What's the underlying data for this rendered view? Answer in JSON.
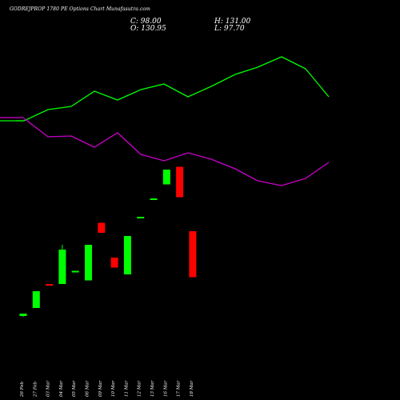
{
  "header": {
    "title": "GODREJPROP 1780 PE Options Chart Munafasutra.com",
    "close": "C: 98.00",
    "open": "O: 130.95",
    "high": "H: 131.00",
    "low": "L: 97.70"
  },
  "chart_data": {
    "type": "candlestick",
    "categories": [
      "26 Feb",
      "27 Feb",
      "03 Mar",
      "04 Mar",
      "05 Mar",
      "06 Mar",
      "09 Mar",
      "10 Mar",
      "11 Mar",
      "12 Mar",
      "13 Mar",
      "16 Mar",
      "17 Mar",
      "18 Mar"
    ],
    "candles": [
      {
        "date": "26 Feb",
        "open": 1.0,
        "high": 1.6,
        "low": 0.8,
        "close": 1.6,
        "color": "green"
      },
      {
        "date": "27 Feb",
        "open": 3.0,
        "high": 7.2,
        "low": 3.0,
        "close": 7.2,
        "color": "green"
      },
      {
        "date": "03 Mar",
        "open": 9.0,
        "high": 9.0,
        "low": 9.0,
        "close": 9.0,
        "color": "red"
      },
      {
        "date": "04 Mar",
        "open": 9.0,
        "high": 18.8,
        "low": 9.0,
        "close": 17.6,
        "color": "green"
      },
      {
        "date": "05 Mar",
        "open": 12.3,
        "high": 12.3,
        "low": 12.3,
        "close": 12.3,
        "color": "green"
      },
      {
        "date": "06 Mar",
        "open": 9.9,
        "high": 18.8,
        "low": 9.9,
        "close": 18.8,
        "color": "green"
      },
      {
        "date": "09 Mar",
        "open": 24.3,
        "high": 24.3,
        "low": 21.8,
        "close": 21.8,
        "color": "red"
      },
      {
        "date": "10 Mar",
        "open": 15.6,
        "high": 15.6,
        "low": 13.1,
        "close": 13.1,
        "color": "red"
      },
      {
        "date": "11 Mar",
        "open": 11.4,
        "high": 21.0,
        "low": 11.4,
        "close": 21.0,
        "color": "green"
      },
      {
        "date": "12 Mar",
        "open": 25.8,
        "high": 25.8,
        "low": 25.8,
        "close": 25.8,
        "color": "green"
      },
      {
        "date": "13 Mar",
        "open": 30.4,
        "high": 30.4,
        "low": 30.4,
        "close": 30.4,
        "color": "green"
      },
      {
        "date": "16 Mar",
        "open": 33.9,
        "high": 37.6,
        "low": 33.9,
        "close": 37.6,
        "color": "green"
      },
      {
        "date": "17 Mar",
        "open": 38.3,
        "high": 38.3,
        "low": 30.7,
        "close": 30.7,
        "color": "red"
      },
      {
        "date": "18 Mar",
        "open": 22.2,
        "high": 22.2,
        "low": 10.7,
        "close": 10.7,
        "color": "red"
      }
    ],
    "line_series": [
      {
        "color": "#00ff00",
        "points": [
          [
            20,
            151
          ],
          [
            30,
            151
          ],
          [
            60,
            137
          ],
          [
            89,
            133
          ],
          [
            118,
            114
          ],
          [
            147,
            125
          ],
          [
            176,
            112
          ],
          [
            205,
            105
          ],
          [
            235,
            121
          ],
          [
            264,
            108
          ],
          [
            294,
            93
          ],
          [
            322,
            84
          ],
          [
            352,
            71
          ],
          [
            382,
            86
          ],
          [
            411,
            121
          ]
        ],
        "leading": [
          [
            0,
            151
          ],
          [
            30,
            151
          ]
        ]
      },
      {
        "color": "#cc00cc",
        "points": [
          [
            30,
            148
          ],
          [
            60,
            171
          ],
          [
            89,
            170
          ],
          [
            118,
            184
          ],
          [
            147,
            166
          ],
          [
            176,
            193
          ],
          [
            205,
            201
          ],
          [
            235,
            191
          ],
          [
            264,
            199
          ],
          [
            294,
            211
          ],
          [
            322,
            226
          ],
          [
            352,
            232
          ],
          [
            382,
            223
          ],
          [
            411,
            203
          ]
        ],
        "leading": [
          [
            0,
            147
          ],
          [
            30,
            147
          ]
        ]
      }
    ],
    "title": "GODREJPROP 1780 PE Options Chart Munafasutra.com",
    "colors": {
      "up": "#00ff00",
      "down": "#ff0000",
      "background": "#000000",
      "text": "#ffffff"
    }
  }
}
